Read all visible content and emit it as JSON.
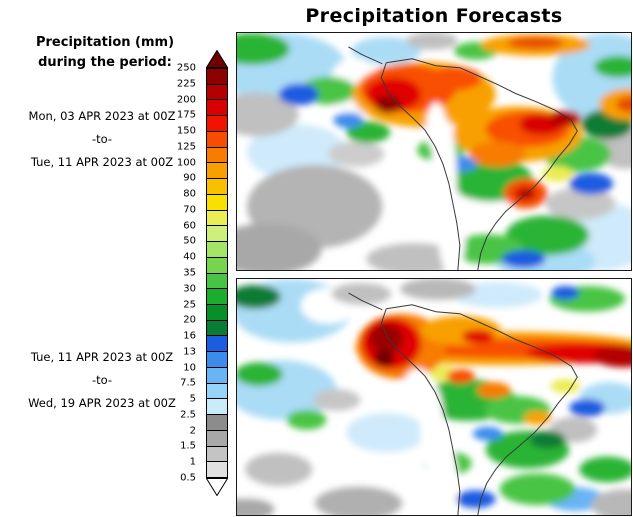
{
  "title": "Precipitation Forecasts",
  "legend": {
    "title_line1": "Precipitation (mm)",
    "title_line2": "during the period:",
    "boundaries": [
      "250",
      "225",
      "200",
      "175",
      "150",
      "125",
      "100",
      "90",
      "80",
      "70",
      "60",
      "50",
      "40",
      "35",
      "30",
      "25",
      "20",
      "16",
      "13",
      "10",
      "7.5",
      "5",
      "2.5",
      "2",
      "1.5",
      "1",
      "0.5"
    ],
    "cell_colors": [
      "#8f0000",
      "#b40000",
      "#d80000",
      "#f01400",
      "#f84c00",
      "#f87c00",
      "#f8a000",
      "#f8c000",
      "#f8e000",
      "#ecec54",
      "#ccf078",
      "#a4e468",
      "#78d450",
      "#48c444",
      "#1cac30",
      "#089028",
      "#0a7c34",
      "#1c5ce0",
      "#3c8cec",
      "#68b4f4",
      "#98d4f8",
      "#c8ecfa",
      "#8c8c8c",
      "#a8a8a8",
      "#c4c4c4",
      "#e0e0e0"
    ],
    "over_color": "#6e0000",
    "under_color": "#ffffff"
  },
  "periods": {
    "period1": {
      "from": "Mon, 03 APR 2023 at 00Z",
      "separator": "-to-",
      "to": "Tue, 11 APR 2023 at 00Z"
    },
    "period2": {
      "from": "Tue, 11 APR 2023 at 00Z",
      "separator": "-to-",
      "to": "Wed, 19 APR 2023 at 00Z"
    }
  }
}
